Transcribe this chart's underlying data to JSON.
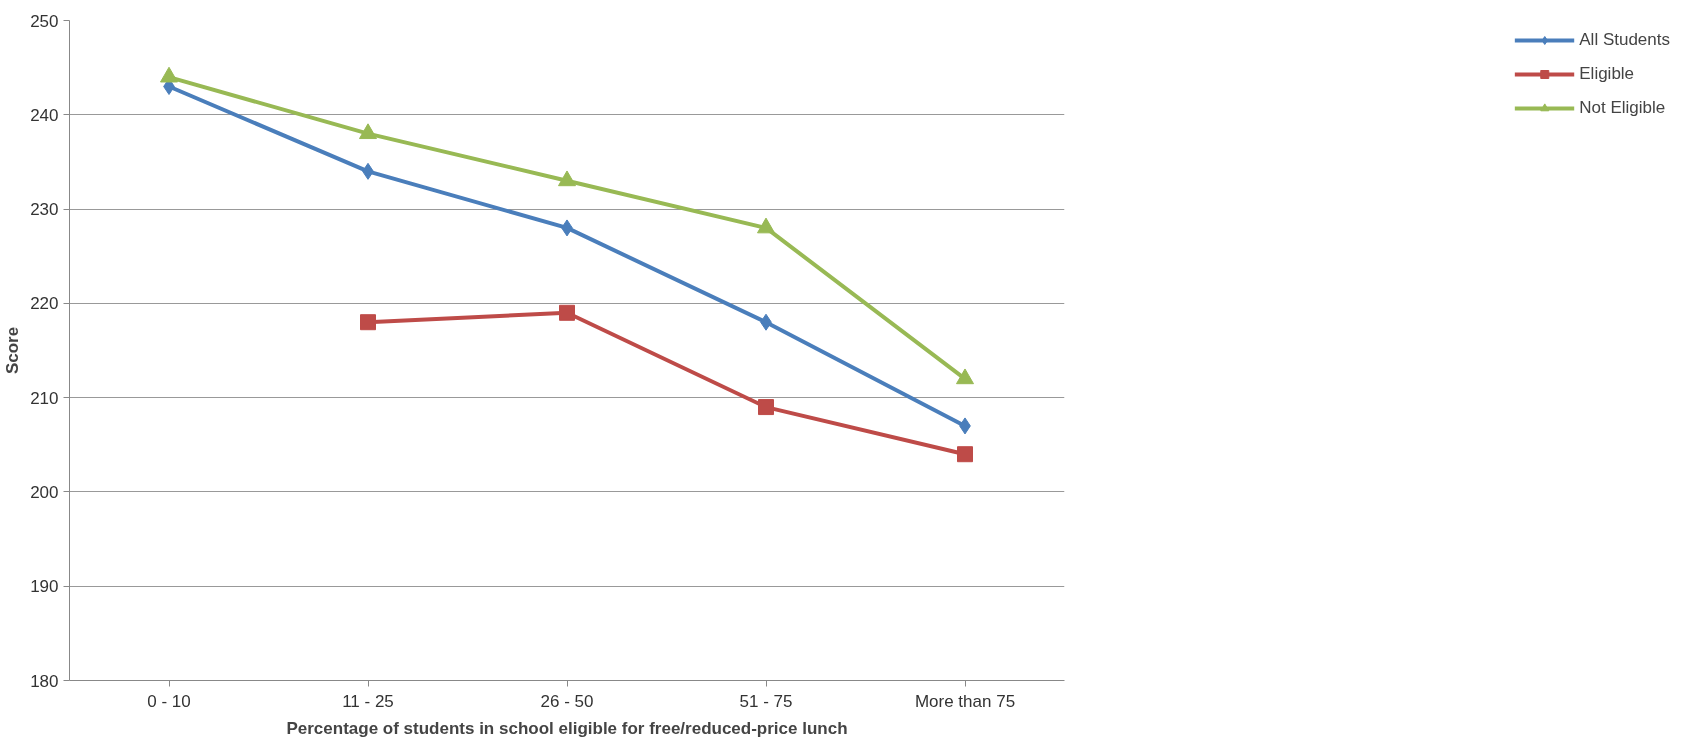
{
  "chart_data": {
    "type": "line",
    "xlabel": "Percentage of students in school eligible for free/reduced-price lunch",
    "ylabel": "Score",
    "categories": [
      "0 - 10",
      "11 - 25",
      "26 - 50",
      "51 - 75",
      "More than 75"
    ],
    "series": [
      {
        "name": "All Students",
        "color": "#4a7ebb",
        "marker": "diamond",
        "values": [
          243,
          234,
          228,
          218,
          207
        ]
      },
      {
        "name": "Eligible",
        "color": "#be4b48",
        "marker": "square",
        "values": [
          null,
          218,
          219,
          209,
          204
        ]
      },
      {
        "name": "Not Eligible",
        "color": "#98b954",
        "marker": "triangle",
        "values": [
          244,
          238,
          233,
          228,
          212
        ]
      }
    ],
    "ylim": [
      180,
      250
    ],
    "yticks": [
      180,
      190,
      200,
      210,
      220,
      230,
      240,
      250
    ],
    "grid": "y",
    "legend": "right",
    "line_style": "solid"
  }
}
